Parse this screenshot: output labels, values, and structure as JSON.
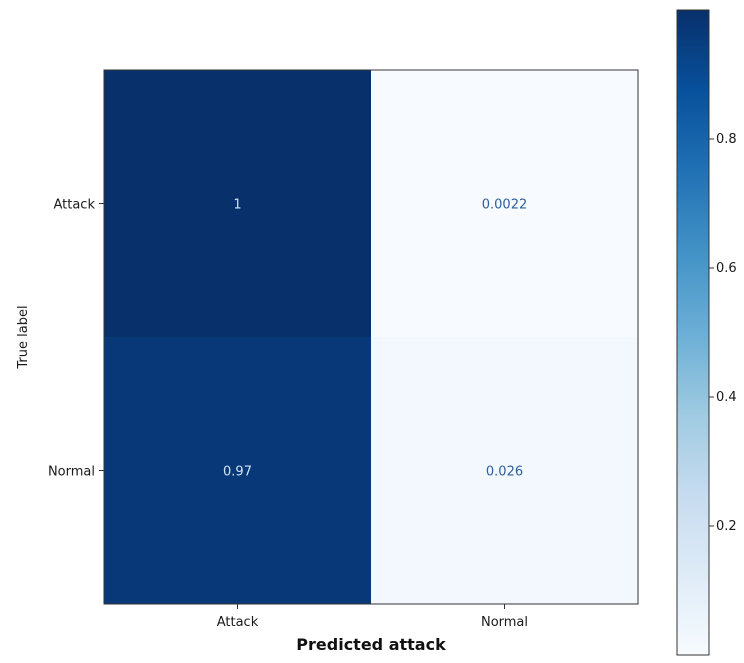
{
  "chart_data": {
    "type": "heatmap",
    "title": "",
    "xlabel": "Predicted attack",
    "ylabel": "True label",
    "x_categories": [
      "Attack",
      "Normal"
    ],
    "y_categories": [
      "Attack",
      "Normal"
    ],
    "values": [
      [
        1,
        0.0022
      ],
      [
        0.97,
        0.026
      ]
    ],
    "value_labels": [
      [
        "1",
        "0.0022"
      ],
      [
        "0.97",
        "0.026"
      ]
    ],
    "colormap": "Blues",
    "colorbar": {
      "range": [
        0,
        1
      ],
      "ticks": [
        0.2,
        0.4,
        0.6,
        0.8
      ],
      "tick_labels": [
        "0.2",
        "0.4",
        "0.6",
        "0.8"
      ]
    },
    "grid": false
  }
}
